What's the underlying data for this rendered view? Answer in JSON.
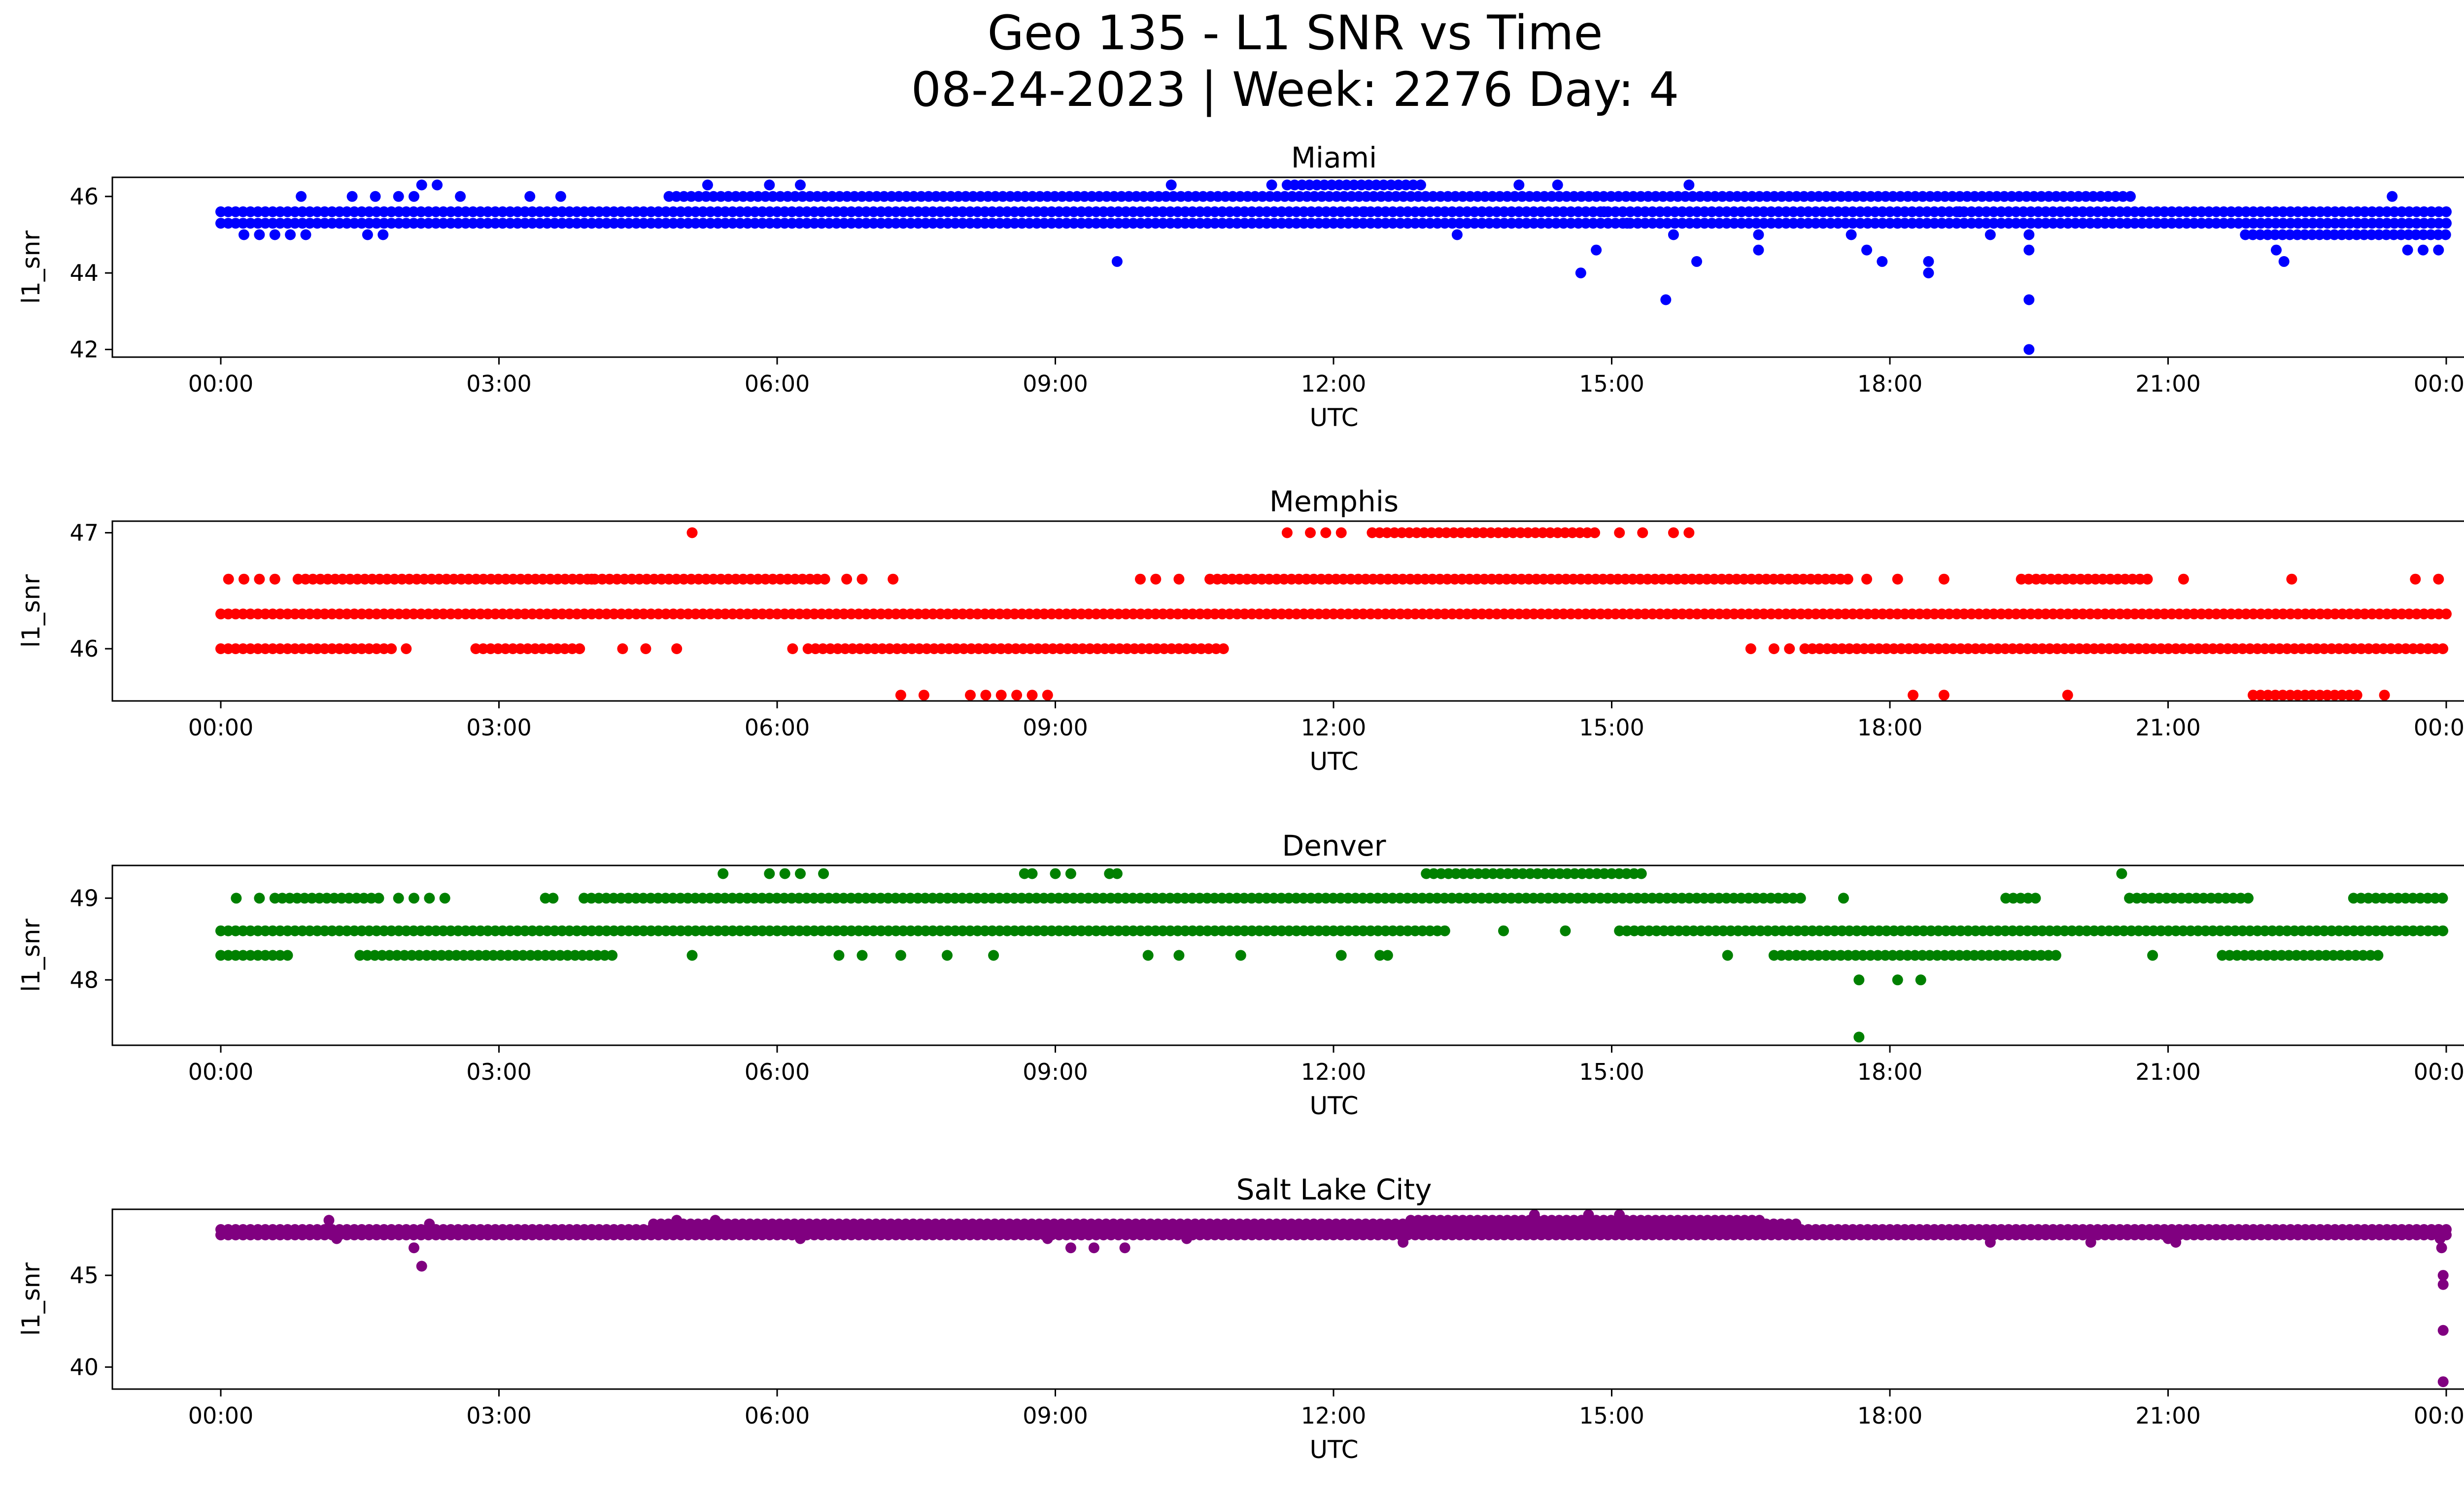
{
  "figure": {
    "title_line1": "Geo 135 - L1 SNR vs Time",
    "title_line2": "08-24-2023 | Week: 2276 Day: 4"
  },
  "chart_data": [
    {
      "type": "scatter",
      "title": "Miami",
      "xlabel": "UTC",
      "ylabel": "l1_snr",
      "color": "#0000ff",
      "xlim": [
        "00:00",
        "24:00"
      ],
      "ylim": [
        41.8,
        46.5
      ],
      "x_ticks": [
        "00:00",
        "03:00",
        "06:00",
        "09:00",
        "12:00",
        "15:00",
        "18:00",
        "21:00",
        "00:00"
      ],
      "y_ticks": [
        42,
        44,
        46
      ],
      "bands": [
        {
          "y": 45.3,
          "from": "00:00",
          "to": "24:00"
        },
        {
          "y": 45.6,
          "from": "00:00",
          "to": "24:00"
        },
        {
          "y": 46.0,
          "from": "04:50",
          "to": "20:40"
        },
        {
          "y": 46.3,
          "from": "11:30",
          "to": "13:00"
        },
        {
          "y": 45.0,
          "from": "21:50",
          "to": "24:00"
        }
      ],
      "points": [
        {
          "t": "00:15",
          "y": 45.0
        },
        {
          "t": "00:25",
          "y": 45.0
        },
        {
          "t": "00:35",
          "y": 45.0
        },
        {
          "t": "00:45",
          "y": 45.0
        },
        {
          "t": "00:55",
          "y": 45.0
        },
        {
          "t": "00:52",
          "y": 46.0
        },
        {
          "t": "01:25",
          "y": 46.0
        },
        {
          "t": "01:35",
          "y": 45.0
        },
        {
          "t": "01:45",
          "y": 45.0
        },
        {
          "t": "01:40",
          "y": 46.0
        },
        {
          "t": "01:55",
          "y": 46.0
        },
        {
          "t": "02:05",
          "y": 46.0
        },
        {
          "t": "02:10",
          "y": 46.3
        },
        {
          "t": "02:20",
          "y": 46.3
        },
        {
          "t": "02:35",
          "y": 46.0
        },
        {
          "t": "03:20",
          "y": 46.0
        },
        {
          "t": "03:40",
          "y": 46.0
        },
        {
          "t": "05:15",
          "y": 46.3
        },
        {
          "t": "05:55",
          "y": 46.3
        },
        {
          "t": "06:15",
          "y": 46.3
        },
        {
          "t": "09:40",
          "y": 44.3
        },
        {
          "t": "10:15",
          "y": 46.3
        },
        {
          "t": "11:20",
          "y": 46.3
        },
        {
          "t": "12:20",
          "y": 45.6
        },
        {
          "t": "13:20",
          "y": 45.0
        },
        {
          "t": "14:00",
          "y": 46.3
        },
        {
          "t": "14:25",
          "y": 46.3
        },
        {
          "t": "14:40",
          "y": 44.0
        },
        {
          "t": "14:50",
          "y": 44.6
        },
        {
          "t": "14:55",
          "y": 45.6
        },
        {
          "t": "15:10",
          "y": 45.3
        },
        {
          "t": "15:35",
          "y": 43.3
        },
        {
          "t": "15:40",
          "y": 45.0
        },
        {
          "t": "15:50",
          "y": 46.3
        },
        {
          "t": "15:55",
          "y": 44.3
        },
        {
          "t": "16:35",
          "y": 45.0
        },
        {
          "t": "16:35",
          "y": 44.6
        },
        {
          "t": "17:35",
          "y": 45.0
        },
        {
          "t": "17:45",
          "y": 44.6
        },
        {
          "t": "17:55",
          "y": 44.3
        },
        {
          "t": "18:05",
          "y": 45.3
        },
        {
          "t": "18:25",
          "y": 44.3
        },
        {
          "t": "18:25",
          "y": 44.0
        },
        {
          "t": "18:45",
          "y": 45.6
        },
        {
          "t": "19:05",
          "y": 45.0
        },
        {
          "t": "19:30",
          "y": 45.0
        },
        {
          "t": "19:30",
          "y": 44.6
        },
        {
          "t": "19:30",
          "y": 43.3
        },
        {
          "t": "19:30",
          "y": 42.0
        },
        {
          "t": "22:10",
          "y": 44.6
        },
        {
          "t": "22:15",
          "y": 44.3
        },
        {
          "t": "23:25",
          "y": 46.0
        },
        {
          "t": "23:35",
          "y": 44.6
        },
        {
          "t": "23:45",
          "y": 44.6
        },
        {
          "t": "23:55",
          "y": 44.6
        }
      ]
    },
    {
      "type": "scatter",
      "title": "Memphis",
      "xlabel": "UTC",
      "ylabel": "l1_snr",
      "color": "#ff0000",
      "xlim": [
        "00:00",
        "24:00"
      ],
      "ylim": [
        45.55,
        47.1
      ],
      "x_ticks": [
        "00:00",
        "03:00",
        "06:00",
        "09:00",
        "12:00",
        "15:00",
        "18:00",
        "21:00",
        "00:00"
      ],
      "y_ticks": [
        46,
        47
      ],
      "bands": [
        {
          "y": 46.3,
          "from": "00:00",
          "to": "24:00"
        },
        {
          "y": 46.0,
          "from": "00:00",
          "to": "01:55"
        },
        {
          "y": 46.0,
          "from": "02:45",
          "to": "03:55"
        },
        {
          "y": 46.0,
          "from": "06:20",
          "to": "10:50"
        },
        {
          "y": 46.0,
          "from": "17:05",
          "to": "24:00"
        },
        {
          "y": 46.6,
          "from": "00:50",
          "to": "06:35"
        },
        {
          "y": 46.6,
          "from": "10:40",
          "to": "17:35"
        },
        {
          "y": 46.6,
          "from": "19:25",
          "to": "20:50"
        },
        {
          "y": 47.0,
          "from": "12:25",
          "to": "14:50"
        },
        {
          "y": 45.6,
          "from": "21:55",
          "to": "23:05"
        }
      ],
      "points": [
        {
          "t": "00:05",
          "y": 46.6
        },
        {
          "t": "00:15",
          "y": 46.6
        },
        {
          "t": "00:25",
          "y": 46.6
        },
        {
          "t": "00:35",
          "y": 46.6
        },
        {
          "t": "02:00",
          "y": 46.0
        },
        {
          "t": "04:00",
          "y": 46.6
        },
        {
          "t": "04:20",
          "y": 46.0
        },
        {
          "t": "04:35",
          "y": 46.0
        },
        {
          "t": "04:55",
          "y": 46.0
        },
        {
          "t": "05:05",
          "y": 47.0
        },
        {
          "t": "06:10",
          "y": 46.0
        },
        {
          "t": "06:45",
          "y": 46.6
        },
        {
          "t": "06:55",
          "y": 46.6
        },
        {
          "t": "07:15",
          "y": 46.6
        },
        {
          "t": "07:20",
          "y": 45.6
        },
        {
          "t": "07:35",
          "y": 45.6
        },
        {
          "t": "08:05",
          "y": 45.6
        },
        {
          "t": "08:15",
          "y": 45.6
        },
        {
          "t": "08:25",
          "y": 45.6
        },
        {
          "t": "08:35",
          "y": 45.6
        },
        {
          "t": "08:45",
          "y": 45.6
        },
        {
          "t": "08:55",
          "y": 45.6
        },
        {
          "t": "09:55",
          "y": 46.6
        },
        {
          "t": "10:05",
          "y": 46.6
        },
        {
          "t": "10:20",
          "y": 46.6
        },
        {
          "t": "11:30",
          "y": 47.0
        },
        {
          "t": "11:45",
          "y": 47.0
        },
        {
          "t": "11:55",
          "y": 47.0
        },
        {
          "t": "12:05",
          "y": 47.0
        },
        {
          "t": "15:05",
          "y": 47.0
        },
        {
          "t": "15:20",
          "y": 47.0
        },
        {
          "t": "15:40",
          "y": 47.0
        },
        {
          "t": "15:50",
          "y": 47.0
        },
        {
          "t": "16:30",
          "y": 46.0
        },
        {
          "t": "16:45",
          "y": 46.0
        },
        {
          "t": "16:55",
          "y": 46.0
        },
        {
          "t": "17:45",
          "y": 46.6
        },
        {
          "t": "18:05",
          "y": 46.6
        },
        {
          "t": "18:15",
          "y": 45.6
        },
        {
          "t": "18:35",
          "y": 46.6
        },
        {
          "t": "18:35",
          "y": 45.6
        },
        {
          "t": "19:55",
          "y": 45.6
        },
        {
          "t": "21:10",
          "y": 46.6
        },
        {
          "t": "22:20",
          "y": 46.6
        },
        {
          "t": "23:20",
          "y": 45.6
        },
        {
          "t": "23:40",
          "y": 46.6
        },
        {
          "t": "23:55",
          "y": 46.6
        }
      ]
    },
    {
      "type": "scatter",
      "title": "Denver",
      "xlabel": "UTC",
      "ylabel": "l1_snr",
      "color": "#008000",
      "xlim": [
        "00:00",
        "24:00"
      ],
      "ylim": [
        47.2,
        49.4
      ],
      "x_ticks": [
        "00:00",
        "03:00",
        "06:00",
        "09:00",
        "12:00",
        "15:00",
        "18:00",
        "21:00",
        "00:00"
      ],
      "y_ticks": [
        48,
        49
      ],
      "bands": [
        {
          "y": 48.6,
          "from": "00:00",
          "to": "13:15"
        },
        {
          "y": 48.6,
          "from": "15:05",
          "to": "24:00"
        },
        {
          "y": 48.3,
          "from": "00:00",
          "to": "00:45"
        },
        {
          "y": 48.3,
          "from": "01:30",
          "to": "04:15"
        },
        {
          "y": 48.3,
          "from": "16:45",
          "to": "19:50"
        },
        {
          "y": 48.3,
          "from": "21:35",
          "to": "23:20"
        },
        {
          "y": 49.0,
          "from": "00:35",
          "to": "01:45"
        },
        {
          "y": 49.0,
          "from": "03:55",
          "to": "17:05"
        },
        {
          "y": 49.0,
          "from": "19:15",
          "to": "19:35"
        },
        {
          "y": 49.0,
          "from": "20:35",
          "to": "21:55"
        },
        {
          "y": 49.0,
          "from": "23:00",
          "to": "24:00"
        },
        {
          "y": 49.3,
          "from": "13:00",
          "to": "15:20"
        }
      ],
      "points": [
        {
          "t": "00:10",
          "y": 49.0
        },
        {
          "t": "00:25",
          "y": 49.0
        },
        {
          "t": "01:55",
          "y": 49.0
        },
        {
          "t": "02:05",
          "y": 49.0
        },
        {
          "t": "02:15",
          "y": 49.0
        },
        {
          "t": "02:25",
          "y": 49.0
        },
        {
          "t": "03:30",
          "y": 49.0
        },
        {
          "t": "03:35",
          "y": 49.0
        },
        {
          "t": "05:05",
          "y": 48.3
        },
        {
          "t": "05:25",
          "y": 49.3
        },
        {
          "t": "05:55",
          "y": 49.3
        },
        {
          "t": "06:05",
          "y": 49.3
        },
        {
          "t": "06:15",
          "y": 49.3
        },
        {
          "t": "06:30",
          "y": 49.3
        },
        {
          "t": "06:40",
          "y": 48.3
        },
        {
          "t": "06:55",
          "y": 48.3
        },
        {
          "t": "07:20",
          "y": 48.3
        },
        {
          "t": "07:50",
          "y": 48.3
        },
        {
          "t": "08:20",
          "y": 48.3
        },
        {
          "t": "08:40",
          "y": 49.3
        },
        {
          "t": "08:45",
          "y": 49.3
        },
        {
          "t": "09:00",
          "y": 49.3
        },
        {
          "t": "09:10",
          "y": 49.3
        },
        {
          "t": "09:35",
          "y": 49.3
        },
        {
          "t": "09:40",
          "y": 49.3
        },
        {
          "t": "10:00",
          "y": 48.3
        },
        {
          "t": "10:20",
          "y": 48.3
        },
        {
          "t": "11:00",
          "y": 48.3
        },
        {
          "t": "12:05",
          "y": 48.3
        },
        {
          "t": "12:30",
          "y": 48.3
        },
        {
          "t": "12:35",
          "y": 48.3
        },
        {
          "t": "13:50",
          "y": 48.6
        },
        {
          "t": "14:30",
          "y": 48.6
        },
        {
          "t": "16:15",
          "y": 48.3
        },
        {
          "t": "17:30",
          "y": 49.0
        },
        {
          "t": "17:40",
          "y": 48.0
        },
        {
          "t": "17:40",
          "y": 47.3
        },
        {
          "t": "18:05",
          "y": 48.0
        },
        {
          "t": "18:20",
          "y": 48.0
        },
        {
          "t": "20:30",
          "y": 49.3
        },
        {
          "t": "20:50",
          "y": 48.3
        }
      ]
    },
    {
      "type": "scatter",
      "title": "Salt Lake City",
      "xlabel": "UTC",
      "ylabel": "l1_snr",
      "color": "#800080",
      "xlim": [
        "00:00",
        "24:00"
      ],
      "ylim": [
        38.8,
        48.6
      ],
      "x_ticks": [
        "00:00",
        "03:00",
        "06:00",
        "09:00",
        "12:00",
        "15:00",
        "18:00",
        "21:00",
        "00:00"
      ],
      "y_ticks": [
        40,
        45
      ],
      "bands": [
        {
          "y": 47.2,
          "from": "00:00",
          "to": "24:00"
        },
        {
          "y": 47.5,
          "from": "00:00",
          "to": "24:00"
        },
        {
          "y": 47.8,
          "from": "04:40",
          "to": "17:00"
        },
        {
          "y": 48.0,
          "from": "12:50",
          "to": "16:40"
        }
      ],
      "points": [
        {
          "t": "01:10",
          "y": 48.0
        },
        {
          "t": "01:15",
          "y": 47.0
        },
        {
          "t": "02:05",
          "y": 46.5
        },
        {
          "t": "02:10",
          "y": 45.5
        },
        {
          "t": "02:15",
          "y": 47.8
        },
        {
          "t": "04:55",
          "y": 48.0
        },
        {
          "t": "05:20",
          "y": 48.0
        },
        {
          "t": "06:15",
          "y": 47.0
        },
        {
          "t": "08:55",
          "y": 47.0
        },
        {
          "t": "09:10",
          "y": 46.5
        },
        {
          "t": "09:25",
          "y": 46.5
        },
        {
          "t": "09:45",
          "y": 46.5
        },
        {
          "t": "10:25",
          "y": 47.0
        },
        {
          "t": "12:45",
          "y": 46.8
        },
        {
          "t": "14:10",
          "y": 48.3
        },
        {
          "t": "14:45",
          "y": 48.3
        },
        {
          "t": "15:05",
          "y": 48.3
        },
        {
          "t": "19:05",
          "y": 46.8
        },
        {
          "t": "20:10",
          "y": 46.8
        },
        {
          "t": "21:00",
          "y": 47.0
        },
        {
          "t": "21:05",
          "y": 46.8
        },
        {
          "t": "23:55",
          "y": 47.5
        },
        {
          "t": "23:56",
          "y": 47.0
        },
        {
          "t": "23:57",
          "y": 46.5
        },
        {
          "t": "23:58",
          "y": 45.0
        },
        {
          "t": "23:58",
          "y": 44.5
        },
        {
          "t": "23:58",
          "y": 42.0
        },
        {
          "t": "23:58",
          "y": 39.2
        }
      ]
    }
  ]
}
